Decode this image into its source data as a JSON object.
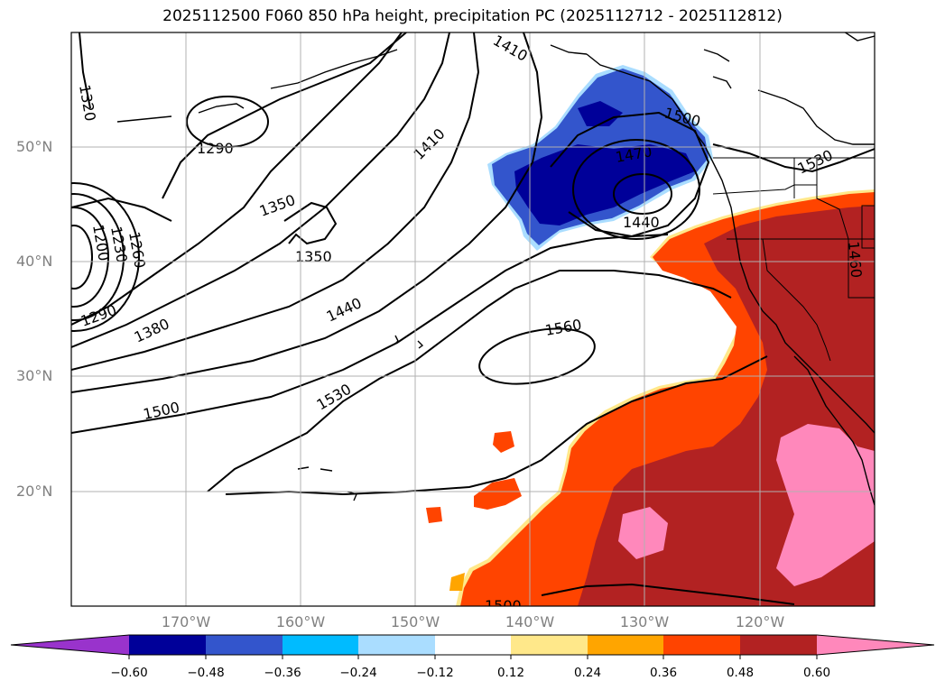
{
  "title": "2025112500 F060 850 hPa height, precipitation PC (2025112712 - 2025112812)",
  "map": {
    "lat_labels": [
      "50°N",
      "40°N",
      "30°N",
      "20°N"
    ],
    "lon_labels": [
      "170°W",
      "160°W",
      "150°W",
      "140°W",
      "130°W",
      "120°W"
    ],
    "contour_labels": [
      "1290",
      "1320",
      "1350",
      "1350",
      "1410",
      "1470",
      "1500",
      "1440",
      "1530",
      "1200",
      "1230",
      "1260",
      "1290",
      "1380",
      "1440",
      "1530",
      "1500",
      "1560",
      "1500",
      "1460",
      "1410"
    ]
  },
  "colorbar": {
    "tick_labels": [
      "−0.60",
      "−0.48",
      "−0.36",
      "−0.24",
      "−0.12",
      "0.12",
      "0.24",
      "0.36",
      "0.48",
      "0.60"
    ],
    "colors": [
      "#9933cc",
      "#000099",
      "#3355cc",
      "#00bbff",
      "#aaddff",
      "#ffffff",
      "#ffe88a",
      "#ffa500",
      "#ff4400",
      "#b22222",
      "#ff88bb"
    ]
  }
}
